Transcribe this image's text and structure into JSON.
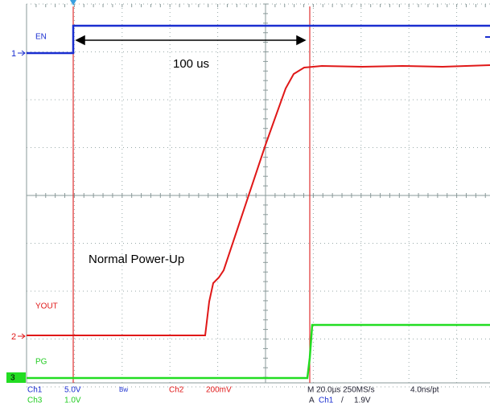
{
  "channels": {
    "en": {
      "label": "EN",
      "marker": "1"
    },
    "yout": {
      "label": "YOUT",
      "marker": "2"
    },
    "pg": {
      "label": "PG",
      "marker": "3"
    }
  },
  "annotations": {
    "interval": "100 us",
    "caption": "Normal Power-Up"
  },
  "status": {
    "row1": [
      "Ch1",
      "5.0V",
      "Bw",
      "Ch2",
      "200mV",
      "M 20.0µs 250MS/s",
      "4.0ns/pt"
    ],
    "row2": [
      "Ch3",
      "1.0V",
      "A",
      "Ch1",
      "/",
      "1.9V"
    ]
  }
}
